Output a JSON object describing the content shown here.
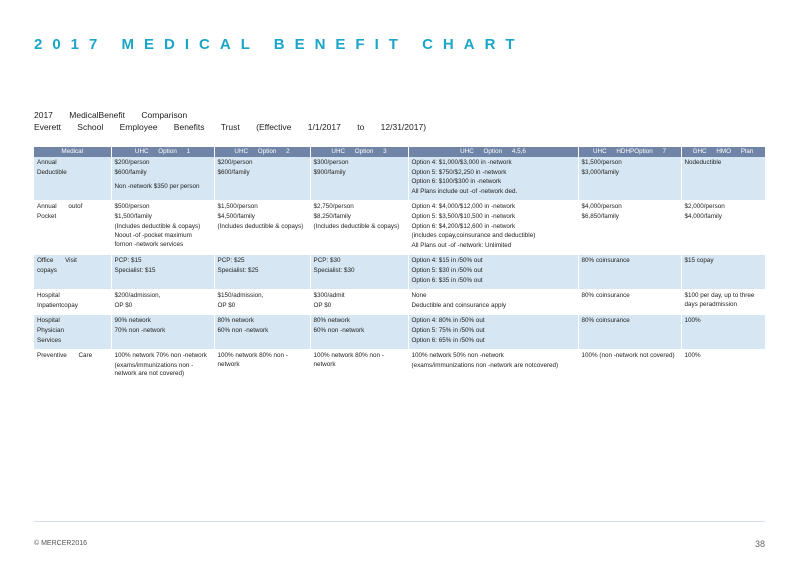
{
  "title": "2017 MEDICAL BENEFIT CHART",
  "subtitle": {
    "line1": "2017 MedicalBenefit Comparison",
    "line2": "Everett School Employee Benefits Trust (Effective 1/1/2017 to 12/31/2017)"
  },
  "table": {
    "headers": [
      "Medical",
      "UHC Option 1",
      "UHC Option 2",
      "UHC Option 3",
      "UHC Option 4,5,6",
      "UHC HDHPOption 7",
      "GHC HMO Plan"
    ],
    "rows": [
      {
        "label": [
          "Annual",
          "Deductible"
        ],
        "cells": [
          [
            "$200/person",
            "$600/family",
            "",
            "Non -network $350 per person"
          ],
          [
            "$200/person",
            "$600/family"
          ],
          [
            "$300/person",
            "$900/family"
          ],
          [
            "Option 4: $1,000/$3,000 in -network",
            "Option 5: $750/$2,250 in -network",
            "Option 6: $100/$300 in -network",
            "All Plans include out -of -network ded."
          ],
          [
            "$1,500/person",
            "$3,000/family"
          ],
          [
            "Nodeductible"
          ]
        ]
      },
      {
        "label": [
          "Annual outof",
          "Pocket"
        ],
        "cells": [
          [
            "$500/person",
            "$1,500/family",
            "(Includes deductible & copays)",
            "Noout -of -pocket maximum fornon -network services"
          ],
          [
            "$1,500/person",
            "$4,500/family",
            "(Includes deductible & copays)"
          ],
          [
            "$2,750/person",
            "$8,250/family",
            "(Includes deductible & copays)"
          ],
          [
            "Option 4: $4,000/$12,000 in -network",
            "Option 5: $3,500/$10,500 in -network",
            "Option 6: $4,200/$12,600 in -network",
            "(includes copay,coinsurance and deductible)",
            "All Plans out -of -network: Unlimited"
          ],
          [
            "$4,000/person",
            "$6,850/family"
          ],
          [
            "$2,000/person",
            "$4,000/family"
          ]
        ]
      },
      {
        "label": [
          "Office Visit",
          "copays"
        ],
        "cells": [
          [
            "PCP: $15",
            "Specialist: $15"
          ],
          [
            "PCP: $25",
            "Specialist: $25"
          ],
          [
            "PCP: $30",
            "Specialist: $30"
          ],
          [
            "Option 4: $15 in /50% out",
            "Option 5: $30 in /50% out",
            "Option 6: $35 in /50% out"
          ],
          [
            "80% coinsurance"
          ],
          [
            "$15 copay"
          ]
        ]
      },
      {
        "label": [
          "Hospital",
          "Inpatientcopay"
        ],
        "cells": [
          [
            "$200/admission,",
            "OP $0"
          ],
          [
            "$150/admission,",
            "OP $0"
          ],
          [
            "$300/admit",
            "OP $0"
          ],
          [
            "None",
            "Deductible and coinsurance apply"
          ],
          [
            "80% coinsurance"
          ],
          [
            "$100 per day, up to three days peradmission"
          ]
        ]
      },
      {
        "label": [
          "Hospital",
          "Physician",
          "Services"
        ],
        "cells": [
          [
            "90% network",
            "70% non -network"
          ],
          [
            "80% network",
            "60% non -network"
          ],
          [
            "80% network",
            "60% non -network"
          ],
          [
            "Option 4: 80% in /50% out",
            "Option 5: 75% in /50% out",
            "Option 6: 65% in /50% out"
          ],
          [
            "80% coinsurance"
          ],
          [
            "100%"
          ]
        ]
      },
      {
        "label": [
          "Preventive Care"
        ],
        "cells": [
          [
            "100% network 70% non -network",
            "(exams/immunizations non -network are not covered)"
          ],
          [
            "100% network 80% non -network"
          ],
          [
            "100% network 80% non -network"
          ],
          [
            "100% network 50% non -network",
            "(exams/immunizations non -network are notcovered)"
          ],
          [
            "100% (non -network not covered)"
          ],
          [
            "100%"
          ]
        ]
      }
    ]
  },
  "footer": {
    "copyright": "© MERCER2016",
    "page": "38"
  }
}
